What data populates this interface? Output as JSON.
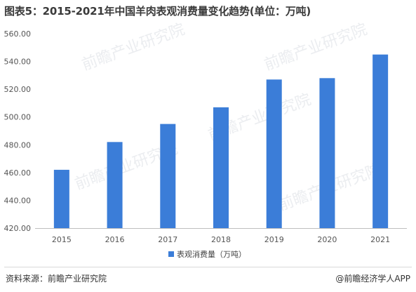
{
  "title": "图表5：2015-2021年中国羊肉表观消费量变化趋势(单位：万吨)",
  "chart_data": {
    "type": "bar",
    "categories": [
      "2015",
      "2016",
      "2017",
      "2018",
      "2019",
      "2020",
      "2021"
    ],
    "series": [
      {
        "name": "表观消费量（万吨）",
        "values": [
          462,
          482,
          495,
          507,
          527,
          528,
          545
        ]
      }
    ],
    "yticks": [
      "420.00",
      "440.00",
      "460.00",
      "480.00",
      "500.00",
      "520.00",
      "540.00",
      "560.00"
    ],
    "ylim": [
      420,
      560
    ],
    "grid": false,
    "legend_position": "bottom-center",
    "bar_color": "#3b7dd8"
  },
  "footer": {
    "source": "资料来源：前瞻产业研究院",
    "brand": "@前瞻经济学人APP"
  },
  "watermark": "前瞻产业研究院"
}
